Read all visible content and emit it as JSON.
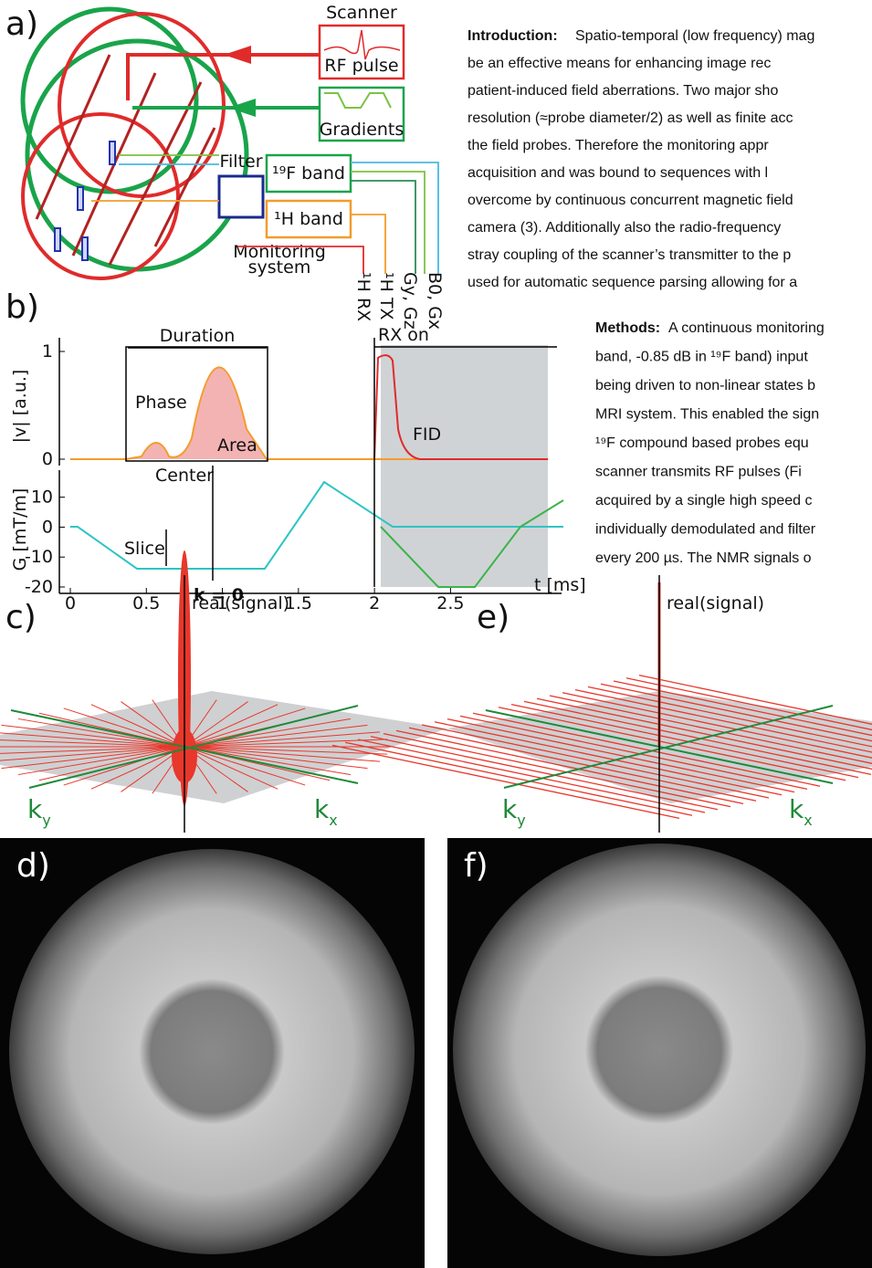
{
  "panel_a": {
    "label": "a)",
    "scanner": "Scanner",
    "rf_pulse": "RF pulse",
    "gradients": "Gradients",
    "filter": "Filter",
    "f19_band": "¹⁹F band",
    "h1_band": "¹H band",
    "monitoring_system": [
      "Monitoring",
      "system"
    ],
    "outputs": [
      "¹H RX",
      "¹H TX",
      "Gy, Gz",
      "B0, Gx"
    ]
  },
  "introduction": {
    "heading": "Introduction:",
    "lines": [
      "Spatio-temporal (low frequency) mag",
      "be an effective means for enhancing image rec",
      "patient-induced field aberrations. Two major sho",
      "resolution (≈probe diameter/2) as well as finite acc",
      "the field probes. Therefore the monitoring appr",
      "acquisition and was bound to sequences with l",
      "overcome by continuous concurrent magnetic field",
      "camera (3). Additionally also the radio-frequency",
      "stray coupling of the scanner’s transmitter to the p",
      "used for automatic sequence parsing allowing for a"
    ]
  },
  "methods": {
    "heading": "Methods:",
    "lines": [
      "A continuous monitoring",
      "band, -0.85 dB in ¹⁹F band) input",
      "being driven to non-linear states b",
      "MRI system. This enabled the sign",
      "¹⁹F compound based probes equ",
      "scanner transmits RF pulses (Fi",
      "acquired by a single high speed c",
      "individually demodulated and filter",
      "every 200 µs. The NMR signals o"
    ]
  },
  "panel_b": {
    "label": "b)",
    "y_top_label": "|v| [a.u.]",
    "y_top_lim": [
      0,
      1
    ],
    "y_top_ticks": [
      0,
      1
    ],
    "y_bottom_label": "G [mT/m]",
    "y_bottom_lim": [
      -20,
      15
    ],
    "y_bottom_ticks": [
      10,
      0,
      -10,
      -20
    ],
    "x_label": "t [ms]",
    "x_lim": [
      0,
      3.2
    ],
    "x_ticks": [
      0,
      0.5,
      1,
      1.5,
      2,
      2.5
    ],
    "annotations": {
      "duration": "Duration",
      "phase": "Phase",
      "area": "Area",
      "center": "Center",
      "rx_on": "RX on",
      "fid": "FID",
      "slice": "Slice",
      "k0": "k = 0"
    }
  },
  "panel_c": {
    "label": "c)",
    "axis": "real(signal)",
    "ky": {
      "main": "k",
      "sub": "y"
    },
    "kx": {
      "main": "k",
      "sub": "x"
    }
  },
  "panel_e": {
    "label": "e)",
    "axis": "real(signal)",
    "ky": {
      "main": "k",
      "sub": "y"
    },
    "kx": {
      "main": "k",
      "sub": "x"
    }
  },
  "panel_d": {
    "label": "d)"
  },
  "panel_f": {
    "label": "f)"
  }
}
